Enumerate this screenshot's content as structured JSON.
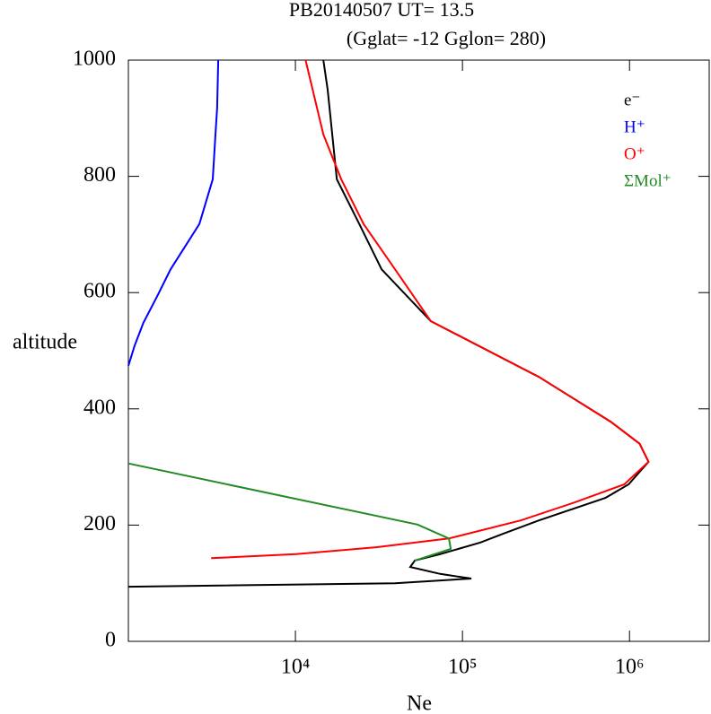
{
  "chart_data": {
    "type": "line",
    "title": "PB20140507   UT=  13.5",
    "subtitle": "(Gglat= -12   Gglon=  280)",
    "x_label": "Ne",
    "y_label": "altitude",
    "x_scale": "log",
    "xlim": [
      1000,
      3000000
    ],
    "xticks": [
      {
        "value": 10000,
        "label": "10⁴"
      },
      {
        "value": 100000,
        "label": "10⁵"
      },
      {
        "value": 1000000,
        "label": "10⁶"
      }
    ],
    "ylim": [
      0,
      1000
    ],
    "yticks": [
      0,
      200,
      400,
      600,
      800,
      1000
    ],
    "grid": false,
    "legend": "upper right",
    "series": [
      {
        "name": "e⁻",
        "color": "#000000",
        "x": [
          14700,
          15600,
          17700,
          24100,
          32800,
          64600,
          287000,
          771000,
          1150000,
          1300000,
          988000,
          720000,
          287000,
          175000,
          128000,
          73500,
          51900,
          48700,
          73500,
          113000,
          39500,
          1000
        ],
        "y": [
          1000,
          949,
          795,
          718,
          640,
          551,
          455,
          378,
          340,
          309,
          270,
          247,
          208,
          185,
          170,
          150,
          139,
          128,
          116,
          108,
          100,
          94
        ]
      },
      {
        "name": "H⁺",
        "color": "#0000ff",
        "x": [
          3450,
          3400,
          3320,
          3200,
          2660,
          1790,
          1490,
          1230,
          1090,
          1000
        ],
        "y": [
          1000,
          918,
          872,
          795,
          718,
          640,
          594,
          548,
          509,
          474
        ]
      },
      {
        "name": "O⁺",
        "color": "#ff0000",
        "x": [
          11500,
          14700,
          18800,
          25600,
          39500,
          64600,
          287000,
          771000,
          1150000,
          1300000,
          930000,
          470000,
          223000,
          83000,
          30800,
          10100,
          3130
        ],
        "y": [
          1000,
          872,
          795,
          718,
          640,
          551,
          455,
          378,
          340,
          309,
          270,
          239,
          208,
          177,
          162,
          150,
          143
        ]
      },
      {
        "name": "ΣMol⁺",
        "color": "#228b22",
        "x": [
          1000,
          53800,
          83000,
          85100,
          51900
        ],
        "y": [
          306,
          201,
          177,
          159,
          139
        ]
      }
    ]
  }
}
